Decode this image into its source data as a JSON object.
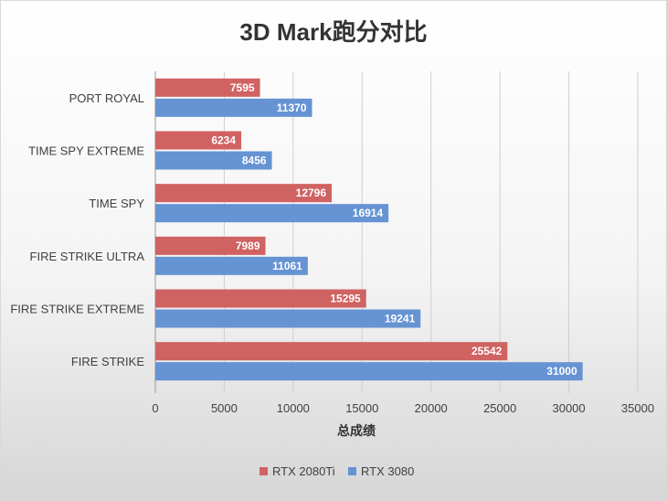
{
  "chart_data": {
    "type": "bar",
    "orientation": "horizontal",
    "title": "3D Mark跑分对比",
    "xlabel": "总成绩",
    "ylabel": "",
    "xlim": [
      0,
      35000
    ],
    "ticks": [
      0,
      5000,
      10000,
      15000,
      20000,
      25000,
      30000,
      35000
    ],
    "categories": [
      "PORT ROYAL",
      "TIME SPY EXTREME",
      "TIME SPY",
      "FIRE STRIKE ULTRA",
      "FIRE STRIKE EXTREME",
      "FIRE STRIKE"
    ],
    "series": [
      {
        "name": "RTX 2080Ti",
        "color": "#d06262",
        "values": [
          7595,
          6234,
          12796,
          7989,
          15295,
          25542
        ]
      },
      {
        "name": "RTX 3080",
        "color": "#6593d3",
        "values": [
          11370,
          8456,
          16914,
          11061,
          19241,
          31000
        ]
      }
    ],
    "grid": true,
    "legend": "bottom"
  }
}
